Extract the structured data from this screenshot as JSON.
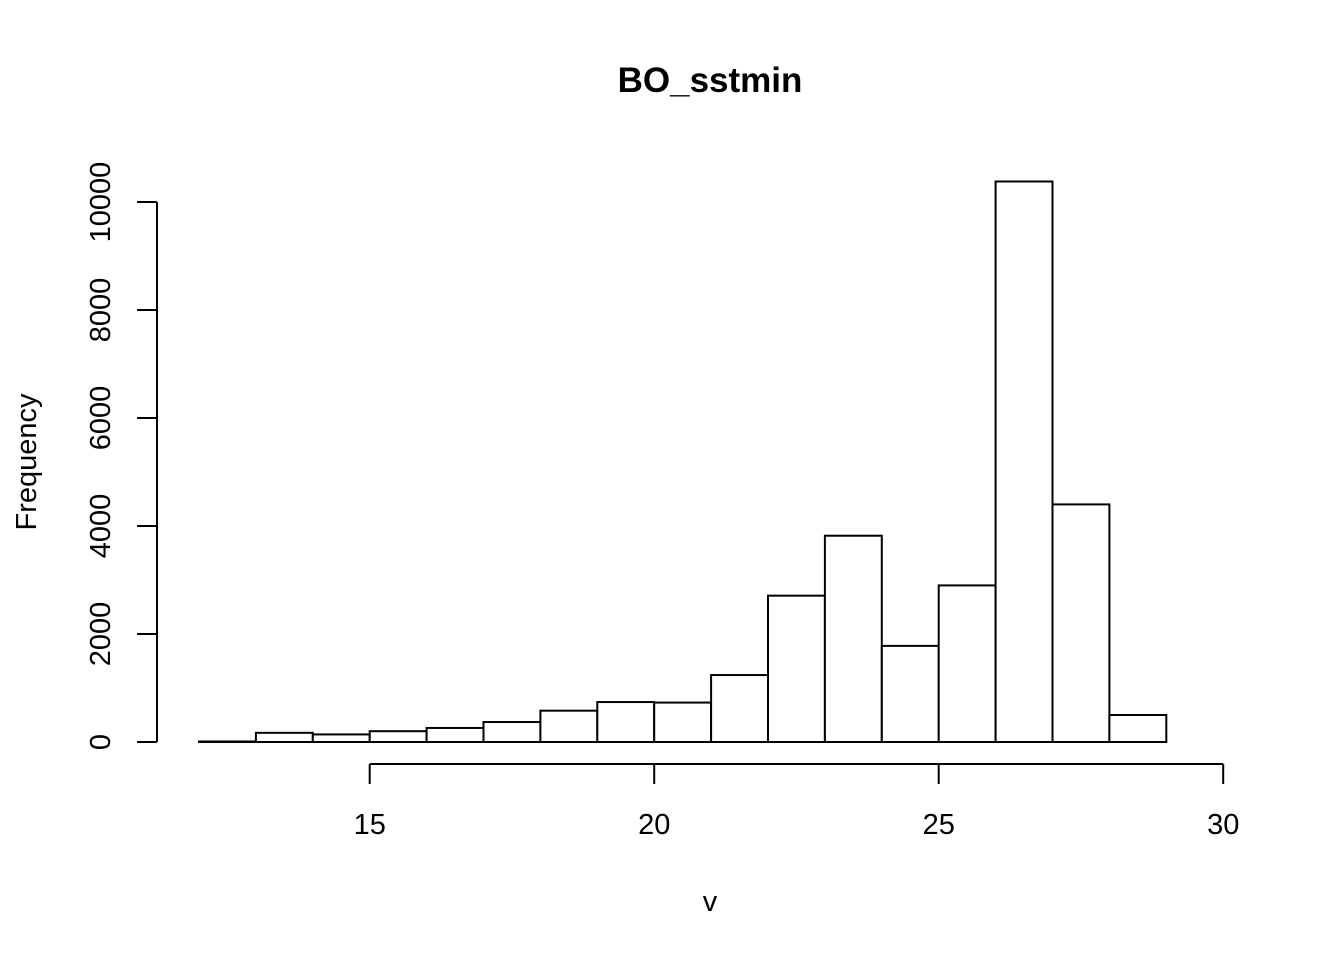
{
  "chart_data": {
    "type": "bar",
    "title": "BO_sstmin",
    "xlabel": "v",
    "ylabel": "Frequency",
    "bins": [
      {
        "x0": 12,
        "x1": 13,
        "count": 10
      },
      {
        "x0": 13,
        "x1": 14,
        "count": 170
      },
      {
        "x0": 14,
        "x1": 15,
        "count": 140
      },
      {
        "x0": 15,
        "x1": 16,
        "count": 200
      },
      {
        "x0": 16,
        "x1": 17,
        "count": 260
      },
      {
        "x0": 17,
        "x1": 18,
        "count": 370
      },
      {
        "x0": 18,
        "x1": 19,
        "count": 580
      },
      {
        "x0": 19,
        "x1": 20,
        "count": 740
      },
      {
        "x0": 20,
        "x1": 21,
        "count": 730
      },
      {
        "x0": 21,
        "x1": 22,
        "count": 1240
      },
      {
        "x0": 22,
        "x1": 23,
        "count": 2710
      },
      {
        "x0": 23,
        "x1": 24,
        "count": 3820
      },
      {
        "x0": 24,
        "x1": 25,
        "count": 1780
      },
      {
        "x0": 25,
        "x1": 26,
        "count": 2900
      },
      {
        "x0": 26,
        "x1": 27,
        "count": 10380
      },
      {
        "x0": 27,
        "x1": 28,
        "count": 4400
      },
      {
        "x0": 28,
        "x1": 29,
        "count": 500
      },
      {
        "x0": 29,
        "x1": 30,
        "count": 0
      }
    ],
    "xticks": [
      15,
      20,
      25,
      30
    ],
    "yticks": [
      0,
      2000,
      4000,
      6000,
      8000,
      10000
    ],
    "xlim": [
      12,
      30
    ],
    "ylim": [
      0,
      10000
    ],
    "grid": false,
    "legend": "none"
  }
}
